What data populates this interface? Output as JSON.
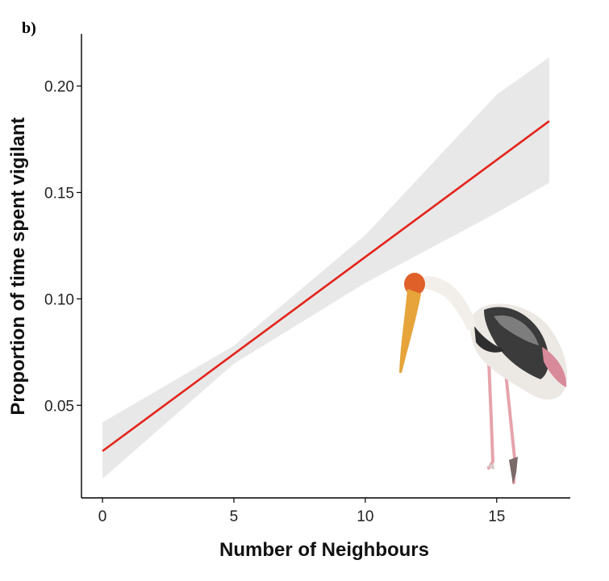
{
  "panel_label": "b)",
  "chart_data": {
    "type": "line",
    "xlabel": "Number of Neighbours",
    "ylabel": "Proportion of time spent vigilant",
    "xlim": [
      -0.8,
      17.8
    ],
    "ylim": [
      0.0065,
      0.2245
    ],
    "xticks": [
      0,
      5,
      10,
      15
    ],
    "yticks": [
      0.05,
      0.1,
      0.15,
      0.2
    ],
    "ytick_labels": [
      "0.05",
      "0.10",
      "0.15",
      "0.20"
    ],
    "xtick_labels": [
      "0",
      "5",
      "10",
      "15"
    ],
    "grid": false,
    "series": [
      {
        "kind": "fitted-line",
        "color": "#e3241b",
        "x": [
          0,
          17
        ],
        "y": [
          0.0285,
          0.1835
        ]
      }
    ],
    "confidence_band": {
      "color": "#e8e8e8",
      "x": [
        0,
        5,
        10,
        15,
        17
      ],
      "lower": [
        0.0155,
        0.0695,
        0.1075,
        0.1405,
        0.1545
      ],
      "upper": [
        0.042,
        0.078,
        0.13,
        0.196,
        0.2135
      ]
    },
    "illustration": "painted-stork-image"
  }
}
